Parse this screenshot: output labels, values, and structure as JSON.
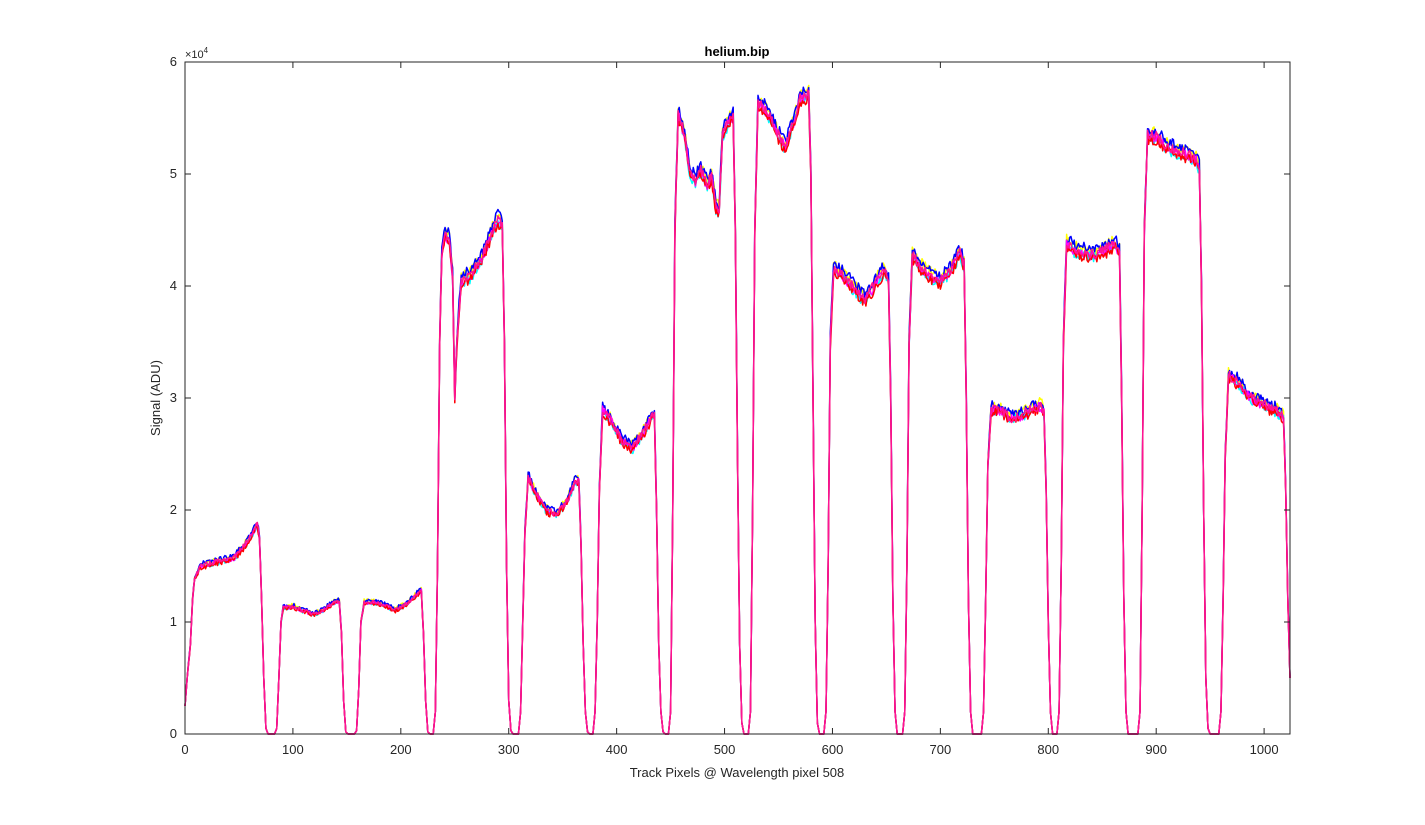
{
  "chart_data": {
    "type": "line",
    "title": "helium.bip",
    "xlabel": "Track Pixels @ Wavelength pixel 508",
    "ylabel": "Signal (ADU)",
    "xlim": [
      0,
      1024
    ],
    "ylim": [
      0,
      60000
    ],
    "y_exponent_label": {
      "base": "×10",
      "exp": "4"
    },
    "x_ticks": [
      {
        "value": 0,
        "label": "0"
      },
      {
        "value": 100,
        "label": "100"
      },
      {
        "value": 200,
        "label": "200"
      },
      {
        "value": 300,
        "label": "300"
      },
      {
        "value": 400,
        "label": "400"
      },
      {
        "value": 500,
        "label": "500"
      },
      {
        "value": 600,
        "label": "600"
      },
      {
        "value": 700,
        "label": "700"
      },
      {
        "value": 800,
        "label": "800"
      },
      {
        "value": 900,
        "label": "900"
      },
      {
        "value": 1000,
        "label": "1000"
      }
    ],
    "y_ticks": [
      {
        "value": 0,
        "label": "0"
      },
      {
        "value": 10000,
        "label": "1"
      },
      {
        "value": 20000,
        "label": "2"
      },
      {
        "value": 30000,
        "label": "3"
      },
      {
        "value": 40000,
        "label": "4"
      },
      {
        "value": 50000,
        "label": "5"
      },
      {
        "value": 60000,
        "label": "6"
      }
    ],
    "grid": false,
    "series": [
      {
        "color": "#FFFF00",
        "offset": 350
      },
      {
        "color": "#00FFFF",
        "offset": -300
      },
      {
        "color": "#0000FF",
        "offset": 450
      },
      {
        "color": "#FF00FF",
        "offset": -150
      },
      {
        "color": "#FF0000",
        "offset": -400
      },
      {
        "color": "#FF1493",
        "offset": 0
      }
    ],
    "profile": [
      [
        0,
        2500
      ],
      [
        2,
        5000
      ],
      [
        5,
        8000
      ],
      [
        7,
        12000
      ],
      [
        9,
        14000
      ],
      [
        12,
        14500
      ],
      [
        15,
        15000
      ],
      [
        25,
        15300
      ],
      [
        35,
        15500
      ],
      [
        45,
        15700
      ],
      [
        55,
        16800
      ],
      [
        62,
        17800
      ],
      [
        67,
        18800
      ],
      [
        69,
        17500
      ],
      [
        71,
        12000
      ],
      [
        73,
        5000
      ],
      [
        75,
        500
      ],
      [
        77,
        0
      ],
      [
        83,
        0
      ],
      [
        85,
        500
      ],
      [
        87,
        5000
      ],
      [
        89,
        10000
      ],
      [
        91,
        11300
      ],
      [
        100,
        11400
      ],
      [
        110,
        11000
      ],
      [
        120,
        10700
      ],
      [
        130,
        11200
      ],
      [
        140,
        11900
      ],
      [
        143,
        11800
      ],
      [
        145,
        9000
      ],
      [
        147,
        3000
      ],
      [
        149,
        200
      ],
      [
        151,
        0
      ],
      [
        157,
        0
      ],
      [
        159,
        300
      ],
      [
        161,
        4000
      ],
      [
        163,
        10000
      ],
      [
        166,
        11800
      ],
      [
        175,
        11800
      ],
      [
        185,
        11500
      ],
      [
        195,
        11100
      ],
      [
        205,
        11600
      ],
      [
        215,
        12500
      ],
      [
        219,
        12800
      ],
      [
        221,
        9000
      ],
      [
        223,
        3000
      ],
      [
        225,
        200
      ],
      [
        227,
        0
      ],
      [
        230,
        0
      ],
      [
        232,
        2000
      ],
      [
        234,
        15000
      ],
      [
        236,
        35000
      ],
      [
        238,
        43000
      ],
      [
        241,
        44700
      ],
      [
        245,
        44200
      ],
      [
        248,
        41000
      ],
      [
        250,
        30200
      ],
      [
        252,
        35000
      ],
      [
        254,
        38000
      ],
      [
        256,
        40500
      ],
      [
        265,
        41000
      ],
      [
        275,
        42500
      ],
      [
        285,
        45000
      ],
      [
        290,
        46000
      ],
      [
        294,
        45400
      ],
      [
        296,
        35000
      ],
      [
        298,
        15000
      ],
      [
        300,
        3000
      ],
      [
        302,
        300
      ],
      [
        304,
        0
      ],
      [
        309,
        0
      ],
      [
        311,
        2000
      ],
      [
        313,
        10000
      ],
      [
        315,
        18000
      ],
      [
        318,
        23000
      ],
      [
        325,
        21500
      ],
      [
        335,
        20000
      ],
      [
        345,
        19600
      ],
      [
        355,
        21000
      ],
      [
        362,
        22700
      ],
      [
        365,
        22500
      ],
      [
        367,
        17000
      ],
      [
        369,
        8000
      ],
      [
        371,
        2000
      ],
      [
        373,
        200
      ],
      [
        375,
        0
      ],
      [
        378,
        0
      ],
      [
        380,
        2000
      ],
      [
        382,
        10000
      ],
      [
        384,
        22000
      ],
      [
        387,
        29000
      ],
      [
        395,
        28000
      ],
      [
        405,
        26200
      ],
      [
        415,
        25600
      ],
      [
        425,
        27000
      ],
      [
        432,
        28300
      ],
      [
        435,
        28500
      ],
      [
        437,
        20000
      ],
      [
        439,
        8000
      ],
      [
        441,
        2000
      ],
      [
        443,
        200
      ],
      [
        445,
        0
      ],
      [
        448,
        0
      ],
      [
        450,
        2000
      ],
      [
        452,
        20000
      ],
      [
        454,
        45000
      ],
      [
        457,
        55500
      ],
      [
        463,
        53500
      ],
      [
        468,
        50000
      ],
      [
        473,
        49500
      ],
      [
        478,
        50500
      ],
      [
        484,
        49000
      ],
      [
        488,
        50000
      ],
      [
        492,
        47000
      ],
      [
        495,
        46800
      ],
      [
        498,
        53500
      ],
      [
        505,
        55000
      ],
      [
        508,
        55200
      ],
      [
        510,
        45000
      ],
      [
        512,
        25000
      ],
      [
        514,
        8000
      ],
      [
        516,
        1000
      ],
      [
        518,
        0
      ],
      [
        522,
        0
      ],
      [
        524,
        2000
      ],
      [
        526,
        20000
      ],
      [
        528,
        45000
      ],
      [
        531,
        56500
      ],
      [
        540,
        55500
      ],
      [
        550,
        53500
      ],
      [
        556,
        52500
      ],
      [
        560,
        53500
      ],
      [
        565,
        55000
      ],
      [
        570,
        56700
      ],
      [
        578,
        57200
      ],
      [
        580,
        50000
      ],
      [
        582,
        30000
      ],
      [
        584,
        10000
      ],
      [
        586,
        1000
      ],
      [
        588,
        0
      ],
      [
        592,
        0
      ],
      [
        594,
        2000
      ],
      [
        596,
        15000
      ],
      [
        598,
        35000
      ],
      [
        601,
        41500
      ],
      [
        610,
        41000
      ],
      [
        620,
        39800
      ],
      [
        630,
        38800
      ],
      [
        640,
        40300
      ],
      [
        648,
        41500
      ],
      [
        652,
        40500
      ],
      [
        654,
        30000
      ],
      [
        656,
        12000
      ],
      [
        658,
        2000
      ],
      [
        660,
        0
      ],
      [
        665,
        0
      ],
      [
        667,
        2000
      ],
      [
        669,
        15000
      ],
      [
        671,
        35000
      ],
      [
        674,
        42800
      ],
      [
        680,
        42000
      ],
      [
        690,
        41000
      ],
      [
        700,
        40500
      ],
      [
        710,
        41500
      ],
      [
        718,
        43000
      ],
      [
        722,
        42000
      ],
      [
        724,
        30000
      ],
      [
        726,
        12000
      ],
      [
        728,
        2000
      ],
      [
        730,
        0
      ],
      [
        738,
        0
      ],
      [
        740,
        2000
      ],
      [
        742,
        12000
      ],
      [
        744,
        24000
      ],
      [
        747,
        29000
      ],
      [
        755,
        29000
      ],
      [
        765,
        28200
      ],
      [
        775,
        28500
      ],
      [
        785,
        29000
      ],
      [
        793,
        29400
      ],
      [
        796,
        28800
      ],
      [
        798,
        22000
      ],
      [
        800,
        10000
      ],
      [
        802,
        2000
      ],
      [
        804,
        0
      ],
      [
        808,
        0
      ],
      [
        810,
        2000
      ],
      [
        812,
        15000
      ],
      [
        814,
        35000
      ],
      [
        817,
        44000
      ],
      [
        825,
        43200
      ],
      [
        835,
        43000
      ],
      [
        845,
        42800
      ],
      [
        855,
        43400
      ],
      [
        862,
        43800
      ],
      [
        866,
        43000
      ],
      [
        868,
        30000
      ],
      [
        870,
        12000
      ],
      [
        872,
        2000
      ],
      [
        874,
        0
      ],
      [
        883,
        0
      ],
      [
        885,
        2000
      ],
      [
        887,
        20000
      ],
      [
        889,
        45000
      ],
      [
        892,
        53500
      ],
      [
        900,
        53400
      ],
      [
        910,
        52500
      ],
      [
        920,
        52000
      ],
      [
        930,
        51800
      ],
      [
        937,
        51400
      ],
      [
        940,
        50500
      ],
      [
        942,
        40000
      ],
      [
        944,
        20000
      ],
      [
        946,
        5000
      ],
      [
        948,
        500
      ],
      [
        950,
        0
      ],
      [
        958,
        0
      ],
      [
        960,
        2000
      ],
      [
        962,
        12000
      ],
      [
        964,
        25000
      ],
      [
        967,
        32000
      ],
      [
        975,
        31500
      ],
      [
        985,
        30300
      ],
      [
        995,
        29600
      ],
      [
        1005,
        29200
      ],
      [
        1015,
        28700
      ],
      [
        1018,
        28300
      ],
      [
        1020,
        22000
      ],
      [
        1022,
        12000
      ],
      [
        1024,
        5000
      ]
    ]
  }
}
